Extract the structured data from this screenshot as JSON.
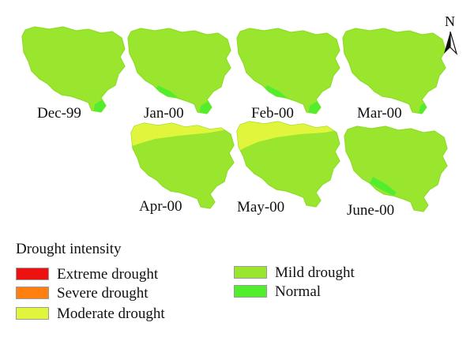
{
  "colors": {
    "extreme": "#ee1111",
    "severe": "#ff7f10",
    "moderate": "#e1f53c",
    "mild": "#9ae62e",
    "normal": "#52ee2e",
    "outline": "#8fdc28"
  },
  "north_arrow": {
    "letter": "N"
  },
  "maps": [
    {
      "label": "Dec-99",
      "zones": [
        "mild",
        "normal"
      ]
    },
    {
      "label": "Jan-00",
      "zones": [
        "mild",
        "normal"
      ]
    },
    {
      "label": "Feb-00",
      "zones": [
        "mild",
        "normal"
      ]
    },
    {
      "label": "Mar-00",
      "zones": [
        "mild",
        "normal"
      ]
    },
    {
      "label": "Apr-00",
      "zones": [
        "moderate",
        "mild"
      ]
    },
    {
      "label": "May-00",
      "zones": [
        "moderate",
        "mild"
      ]
    },
    {
      "label": "June-00",
      "zones": [
        "mild",
        "normal"
      ]
    }
  ],
  "legend": {
    "title": "Drought intensity",
    "items": [
      {
        "key": "extreme",
        "label": "Extreme drought"
      },
      {
        "key": "severe",
        "label": "Severe drought"
      },
      {
        "key": "moderate",
        "label": "Moderate drought"
      },
      {
        "key": "mild",
        "label": "Mild drought"
      },
      {
        "key": "normal",
        "label": "Normal"
      }
    ]
  }
}
